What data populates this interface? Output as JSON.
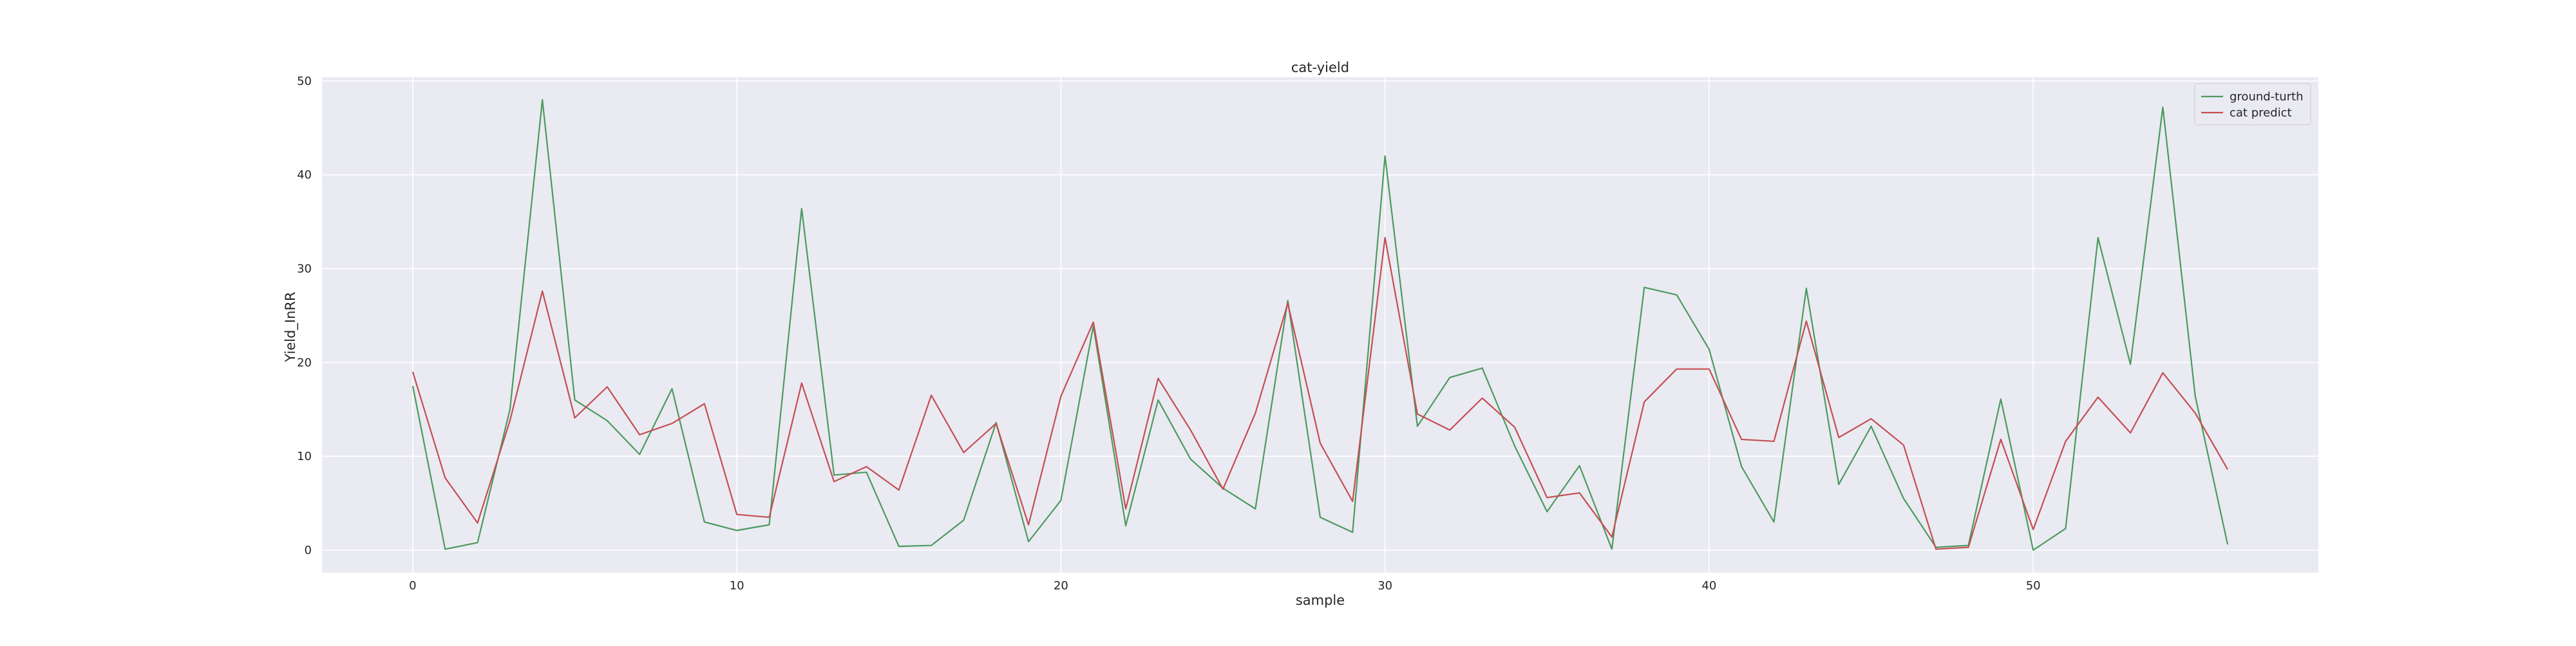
{
  "chart_data": {
    "type": "line",
    "title": "cat-yield",
    "xlabel": "sample",
    "ylabel": "Yield_InRR",
    "xlim": [
      -2.8,
      58.8
    ],
    "ylim": [
      -2.4,
      50.4
    ],
    "xticks": [
      0,
      10,
      20,
      30,
      40,
      50
    ],
    "yticks": [
      0,
      10,
      20,
      30,
      40,
      50
    ],
    "grid": true,
    "legend_position": "top-right",
    "x": [
      0,
      1,
      2,
      3,
      4,
      5,
      6,
      7,
      8,
      9,
      10,
      11,
      12,
      13,
      14,
      15,
      16,
      17,
      18,
      19,
      20,
      21,
      22,
      23,
      24,
      25,
      26,
      27,
      28,
      29,
      30,
      31,
      32,
      33,
      34,
      35,
      36,
      37,
      38,
      39,
      40,
      41,
      42,
      43,
      44,
      45,
      46,
      47,
      48,
      49,
      50,
      51,
      52,
      53,
      54,
      55,
      56
    ],
    "series": [
      {
        "name": "ground-turth",
        "color": "#4c9a5e",
        "values": [
          17.5,
          0.1,
          0.8,
          15.0,
          48.0,
          16.0,
          13.8,
          10.2,
          17.2,
          3.0,
          2.1,
          2.7,
          36.4,
          8.0,
          8.3,
          0.4,
          0.5,
          3.2,
          13.6,
          0.9,
          5.3,
          23.9,
          2.6,
          16.0,
          9.7,
          6.6,
          4.4,
          26.6,
          3.5,
          1.9,
          42.0,
          13.2,
          18.4,
          19.4,
          11.1,
          4.1,
          9.0,
          0.1,
          28.0,
          27.2,
          21.4,
          8.9,
          3.0,
          27.9,
          7.0,
          13.2,
          5.5,
          0.3,
          0.5,
          16.1,
          0.0,
          2.3,
          33.3,
          19.8,
          47.2,
          16.4,
          0.6
        ]
      },
      {
        "name": "cat predict",
        "color": "#c44e52",
        "values": [
          19.0,
          7.7,
          2.9,
          13.8,
          27.6,
          14.1,
          17.4,
          12.3,
          13.5,
          15.6,
          3.8,
          3.5,
          17.8,
          7.3,
          8.9,
          6.4,
          16.5,
          10.4,
          13.5,
          2.7,
          16.4,
          24.3,
          4.4,
          18.3,
          12.8,
          6.5,
          14.6,
          26.3,
          11.4,
          5.2,
          33.3,
          14.5,
          12.8,
          16.2,
          13.1,
          5.6,
          6.1,
          1.4,
          15.8,
          19.3,
          19.3,
          11.8,
          11.6,
          24.4,
          12.0,
          14.0,
          11.2,
          0.1,
          0.3,
          11.8,
          2.2,
          11.6,
          16.3,
          12.5,
          18.9,
          14.6,
          8.6
        ]
      }
    ]
  }
}
